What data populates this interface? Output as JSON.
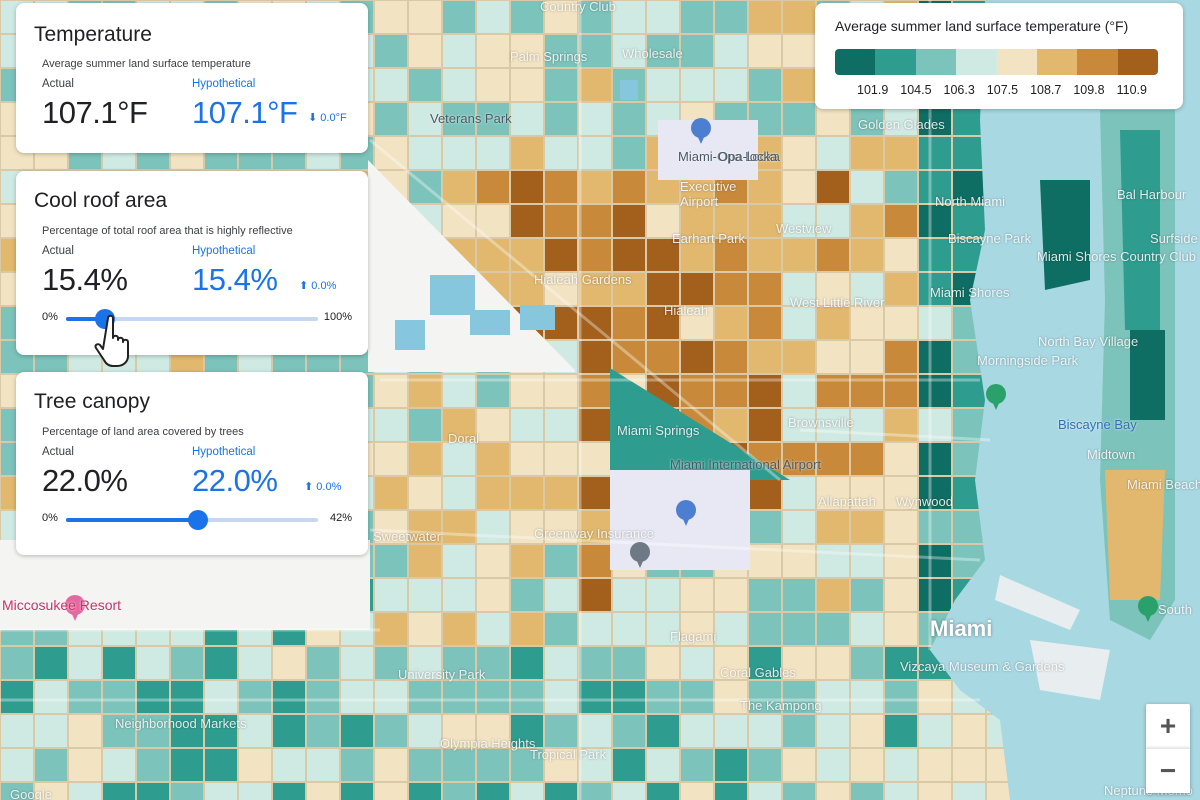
{
  "temperature": {
    "title": "Temperature",
    "subtitle": "Average summer land surface temperature",
    "actual_label": "Actual",
    "hypothetical_label": "Hypothetical",
    "actual_value": "107.1°F",
    "hypothetical_value": "107.1°F",
    "delta": "0.0°F"
  },
  "cool_roof": {
    "title": "Cool roof area",
    "subtitle": "Percentage of total roof area that is highly reflective",
    "actual_label": "Actual",
    "hypothetical_label": "Hypothetical",
    "actual_value": "15.4%",
    "hypothetical_value": "15.4%",
    "delta": "0.0%",
    "slider_min": "0%",
    "slider_max": "100%",
    "slider_fraction": 0.154
  },
  "tree_canopy": {
    "title": "Tree canopy",
    "subtitle": "Percentage of land area covered by trees",
    "actual_label": "Actual",
    "hypothetical_label": "Hypothetical",
    "actual_value": "22.0%",
    "hypothetical_value": "22.0%",
    "delta": "0.0%",
    "slider_min": "0%",
    "slider_max": "42%",
    "slider_fraction": 0.524
  },
  "legend": {
    "title": "Average summer land surface temperature (°F)",
    "colors": [
      "#0e6e63",
      "#2f9c90",
      "#7cc3bb",
      "#cfe9e3",
      "#f2e3c2",
      "#e1b86e",
      "#c88a3a",
      "#a2601c"
    ],
    "ticks": [
      "101.9",
      "104.5",
      "106.3",
      "107.5",
      "108.7",
      "109.8",
      "110.9"
    ]
  },
  "map": {
    "labels": [
      "Country Club",
      "Palm Springs",
      "Wholesale",
      "Veterans Park",
      "Miami-Opa Locka",
      "Opa-locka",
      "Executive",
      "Airport",
      "Earhart Park",
      "Westview",
      "Golden Glades",
      "North Miami",
      "Bal Harbour",
      "Surfside",
      "Biscayne Park",
      "Miami Shores Country Club",
      "Miami Shores",
      "Hialeah Gardens",
      "Hialeah",
      "West Little River",
      "North Bay Village",
      "Morningside Park",
      "Biscayne Bay",
      "Miami Springs",
      "Brownsville",
      "Doral",
      "Miami International Airport",
      "Allapattah",
      "Wynwood",
      "Midtown",
      "Sweetwater",
      "Greenway Insurance",
      "Miccosukee Resort",
      "Miami",
      "Miami Beach",
      "South",
      "Vizcaya Museum & Gardens",
      "University Park",
      "Coral Gables",
      "The Kampong",
      "Olympia Heights",
      "Tropical Park",
      "Neighborhood Markets",
      "Neptune Memo",
      "Google",
      "Flagami"
    ],
    "zoom_in": "+",
    "zoom_out": "−"
  }
}
